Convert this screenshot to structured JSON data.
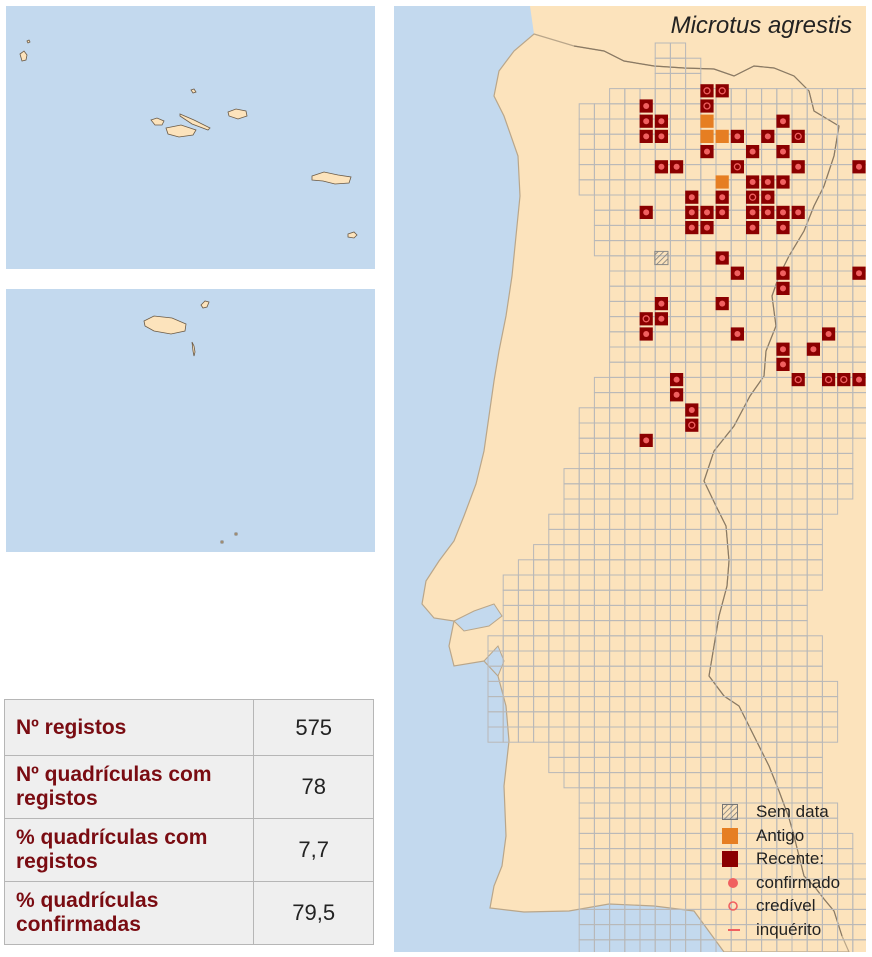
{
  "map": {
    "species_name": "Microtus agrestis",
    "colors": {
      "sea": "#c3d9ee",
      "land": "#fce3bc",
      "grid": "#b8b8b8",
      "recente": "#8b0000",
      "antigo": "#e67e22",
      "point": "#f06060"
    }
  },
  "legend": {
    "items": [
      {
        "key": "sem_data",
        "label": "Sem data"
      },
      {
        "key": "antigo",
        "label": "Antigo"
      },
      {
        "key": "recente",
        "label": "Recente:"
      },
      {
        "key": "confirmado",
        "label": "confirmado"
      },
      {
        "key": "credivel",
        "label": "credível"
      },
      {
        "key": "inquerito",
        "label": "inquérito"
      }
    ]
  },
  "stats": {
    "rows": [
      {
        "label": "Nº registos",
        "value": "575"
      },
      {
        "label": "Nº quadrículas com registos",
        "value": "78"
      },
      {
        "label": "% quadrículas com registos",
        "value": "7,7"
      },
      {
        "label": "% quadrículas confirmadas",
        "value": "79,5"
      }
    ]
  }
}
